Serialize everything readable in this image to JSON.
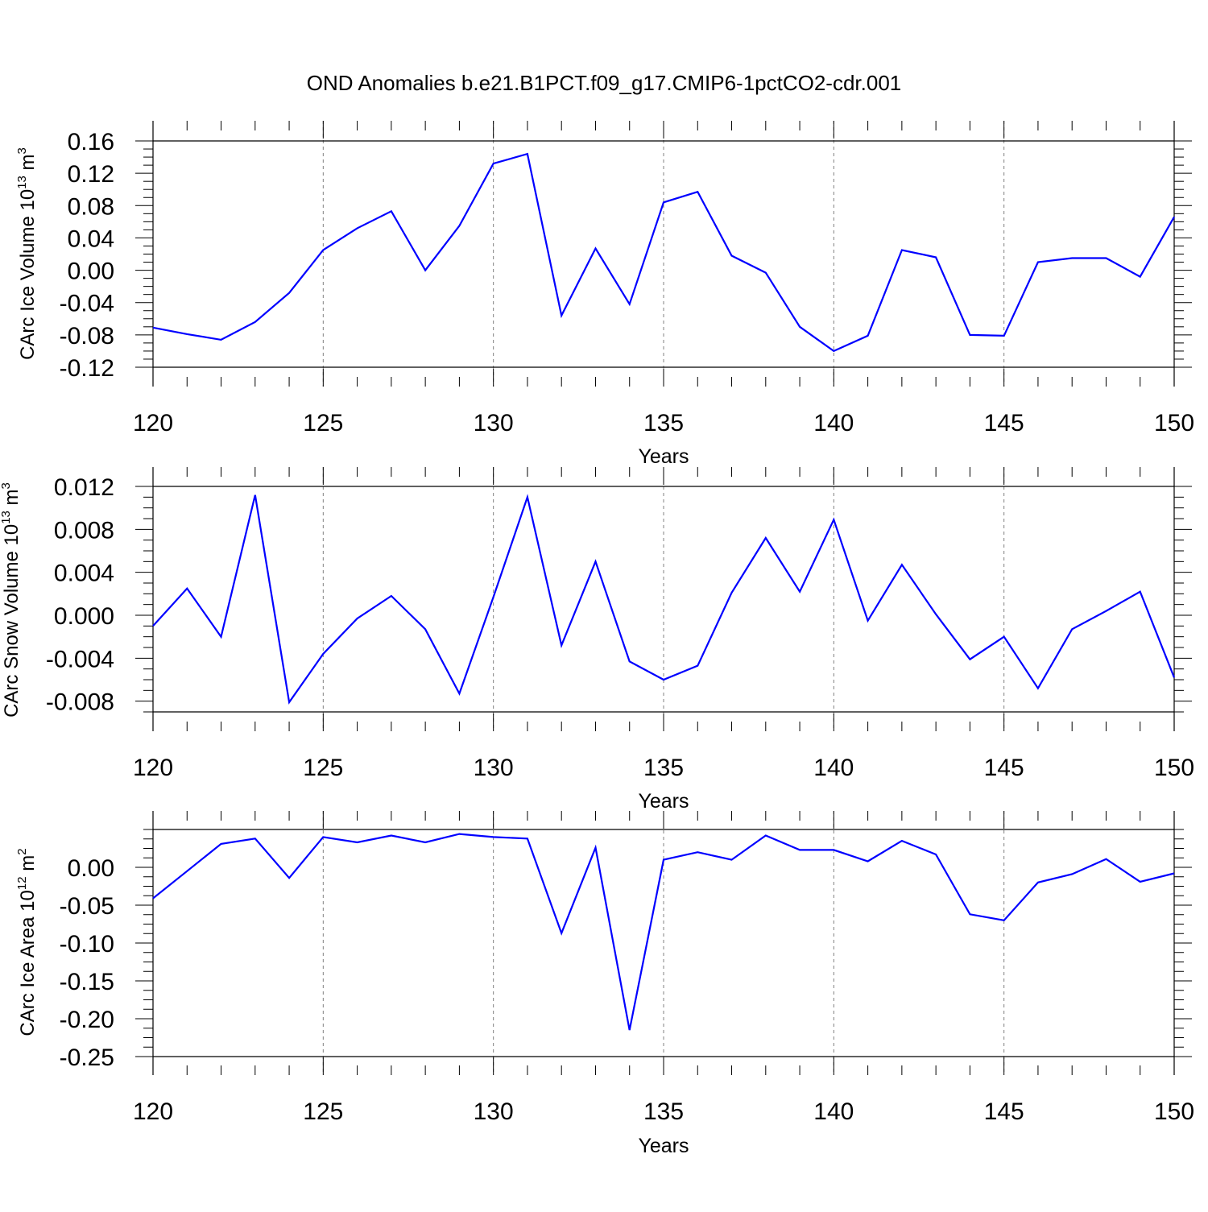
{
  "title": "OND Anomalies b.e21.B1PCT.f09_g17.CMIP6-1pctCO2-cdr.001",
  "colors": {
    "line": "#0000ff",
    "axis": "#000000",
    "grid": "#808080"
  },
  "chart_data": [
    {
      "type": "line",
      "ylabel": {
        "text": "CArc Ice Volume 10",
        "sup": "13",
        "unit": " m",
        "unit_sup": "3"
      },
      "xlabel": "Years",
      "xlim": [
        120,
        150
      ],
      "ylim": [
        -0.12,
        0.16
      ],
      "x_ticks": [
        "120",
        "125",
        "130",
        "135",
        "140",
        "145",
        "150"
      ],
      "y_ticks": [
        "0.16",
        "0.12",
        "0.08",
        "0.04",
        "0.00",
        "-0.04",
        "-0.08",
        "-0.12"
      ],
      "y_tick_values": [
        0.16,
        0.12,
        0.08,
        0.04,
        0.0,
        -0.04,
        -0.08,
        -0.12
      ],
      "x": [
        120,
        121,
        122,
        123,
        124,
        125,
        126,
        127,
        128,
        129,
        130,
        131,
        132,
        133,
        134,
        135,
        136,
        137,
        138,
        139,
        140,
        141,
        142,
        143,
        144,
        145,
        146,
        147,
        148,
        149,
        150
      ],
      "values": [
        -0.071,
        -0.079,
        -0.086,
        -0.064,
        -0.028,
        0.025,
        0.052,
        0.073,
        0.0,
        0.055,
        0.132,
        0.144,
        -0.056,
        0.027,
        -0.042,
        0.084,
        0.097,
        0.018,
        -0.003,
        -0.07,
        -0.1,
        -0.081,
        0.025,
        0.016,
        -0.08,
        -0.081,
        0.01,
        0.015,
        0.015,
        -0.008,
        0.066
      ],
      "grid": "vertical dashed"
    },
    {
      "type": "line",
      "ylabel": {
        "text": "CArc Snow Volume 10",
        "sup": "13",
        "unit": " m",
        "unit_sup": "3"
      },
      "xlabel": "Years",
      "xlim": [
        120,
        150
      ],
      "ylim": [
        -0.009,
        0.012
      ],
      "x_ticks": [
        "120",
        "125",
        "130",
        "135",
        "140",
        "145",
        "150"
      ],
      "y_ticks": [
        "0.012",
        "0.008",
        "0.004",
        "0.000",
        "-0.004",
        "-0.008"
      ],
      "y_tick_values": [
        0.012,
        0.008,
        0.004,
        0.0,
        -0.004,
        -0.008
      ],
      "x": [
        120,
        121,
        122,
        123,
        124,
        125,
        126,
        127,
        128,
        129,
        130,
        131,
        132,
        133,
        134,
        135,
        136,
        137,
        138,
        139,
        140,
        141,
        142,
        143,
        144,
        145,
        146,
        147,
        148,
        149,
        150
      ],
      "values": [
        -0.001,
        0.0025,
        -0.002,
        0.0112,
        -0.0081,
        -0.0036,
        -0.0003,
        0.0018,
        -0.0013,
        -0.0073,
        0.0017,
        0.011,
        -0.0028,
        0.005,
        -0.0043,
        -0.006,
        -0.0047,
        0.0021,
        0.0072,
        0.0022,
        0.0089,
        -0.0005,
        0.0047,
        0.0001,
        -0.0041,
        -0.002,
        -0.0068,
        -0.0013,
        0.0004,
        0.0022,
        -0.0058
      ],
      "grid": "vertical dashed"
    },
    {
      "type": "line",
      "ylabel": {
        "text": "CArc Ice Area 10",
        "sup": "12",
        "unit": " m",
        "unit_sup": "2"
      },
      "xlabel": "Years",
      "xlim": [
        120,
        150
      ],
      "ylim": [
        -0.25,
        0.05
      ],
      "x_ticks": [
        "120",
        "125",
        "130",
        "135",
        "140",
        "145",
        "150"
      ],
      "y_ticks": [
        "0.00",
        "-0.05",
        "-0.10",
        "-0.15",
        "-0.20",
        "-0.25"
      ],
      "y_tick_values": [
        0.0,
        -0.05,
        -0.1,
        -0.15,
        -0.2,
        -0.25
      ],
      "x": [
        120,
        121,
        122,
        123,
        124,
        125,
        126,
        127,
        128,
        129,
        130,
        131,
        132,
        133,
        134,
        135,
        136,
        137,
        138,
        139,
        140,
        141,
        142,
        143,
        144,
        145,
        146,
        147,
        148,
        149,
        150
      ],
      "values": [
        -0.041,
        -0.005,
        0.031,
        0.038,
        -0.014,
        0.04,
        0.033,
        0.042,
        0.033,
        0.044,
        0.04,
        0.038,
        -0.087,
        0.026,
        -0.215,
        0.01,
        0.02,
        0.01,
        0.042,
        0.023,
        0.023,
        0.008,
        0.035,
        0.017,
        -0.062,
        -0.07,
        -0.02,
        -0.009,
        0.011,
        -0.019,
        -0.008
      ],
      "grid": "vertical dashed"
    }
  ]
}
